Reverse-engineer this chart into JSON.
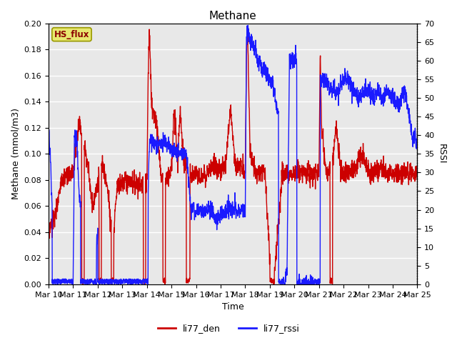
{
  "title": "Methane",
  "xlabel": "Time",
  "ylabel_left": "Methane (mmol/m3)",
  "ylabel_right": "RSSI",
  "ylim_left": [
    0.0,
    0.2
  ],
  "ylim_right": [
    0,
    70
  ],
  "yticks_left": [
    0.0,
    0.02,
    0.04,
    0.06,
    0.08,
    0.1,
    0.12,
    0.14,
    0.16,
    0.18,
    0.2
  ],
  "yticks_right": [
    0,
    5,
    10,
    15,
    20,
    25,
    30,
    35,
    40,
    45,
    50,
    55,
    60,
    65,
    70
  ],
  "xtick_labels": [
    "Mar 10",
    "Mar 11",
    "Mar 12",
    "Mar 13",
    "Mar 14",
    "Mar 15",
    "Mar 16",
    "Mar 17",
    "Mar 18",
    "Mar 19",
    "Mar 20",
    "Mar 21",
    "Mar 22",
    "Mar 23",
    "Mar 24",
    "Mar 25"
  ],
  "color_red": "#cc0000",
  "color_blue": "#1a1aff",
  "legend_label_red": "li77_den",
  "legend_label_blue": "li77_rssi",
  "box_label": "HS_flux",
  "box_bg": "#e8e870",
  "bg_color": "#e8e8e8",
  "line_width": 1.0,
  "title_fontsize": 11,
  "label_fontsize": 9,
  "tick_fontsize": 8,
  "legend_fontsize": 9,
  "figsize": [
    6.4,
    4.8
  ],
  "dpi": 100
}
